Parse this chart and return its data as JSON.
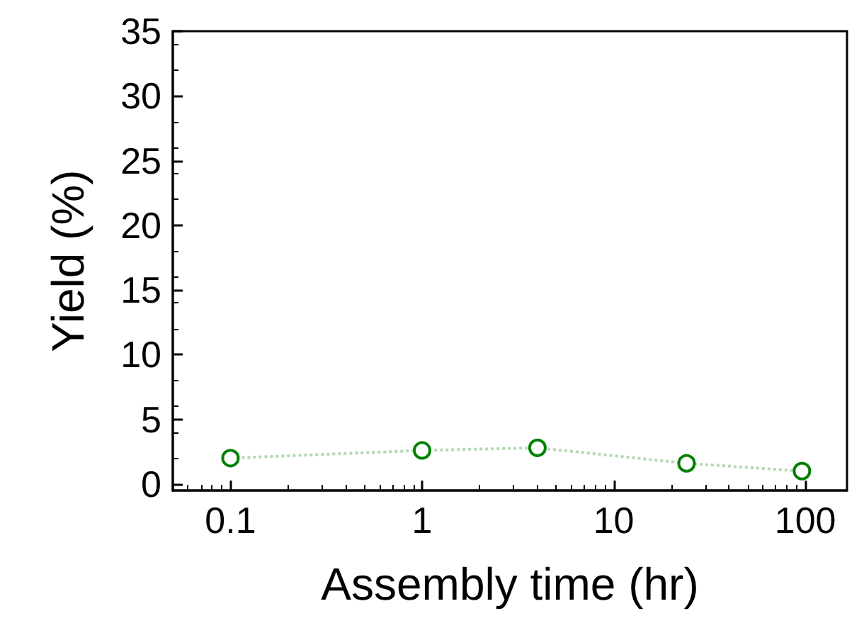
{
  "chart_data": {
    "type": "line",
    "xlabel": "Assembly time (hr)",
    "ylabel": "Yield (%)",
    "x": [
      0.1,
      1,
      4,
      24,
      96
    ],
    "series": [
      {
        "color": "#008000",
        "values": [
          2.0,
          2.6,
          2.8,
          1.6,
          1.0
        ]
      }
    ],
    "xlim": [
      0.05,
      165
    ],
    "xticks": [
      0.1,
      1,
      10,
      100
    ],
    "ylim": [
      -0.5,
      35
    ],
    "yticks": [
      0,
      5,
      10,
      15,
      20,
      25,
      30,
      35
    ],
    "log": "x",
    "grid": false,
    "marker": "circle",
    "line_style": "dotted"
  }
}
